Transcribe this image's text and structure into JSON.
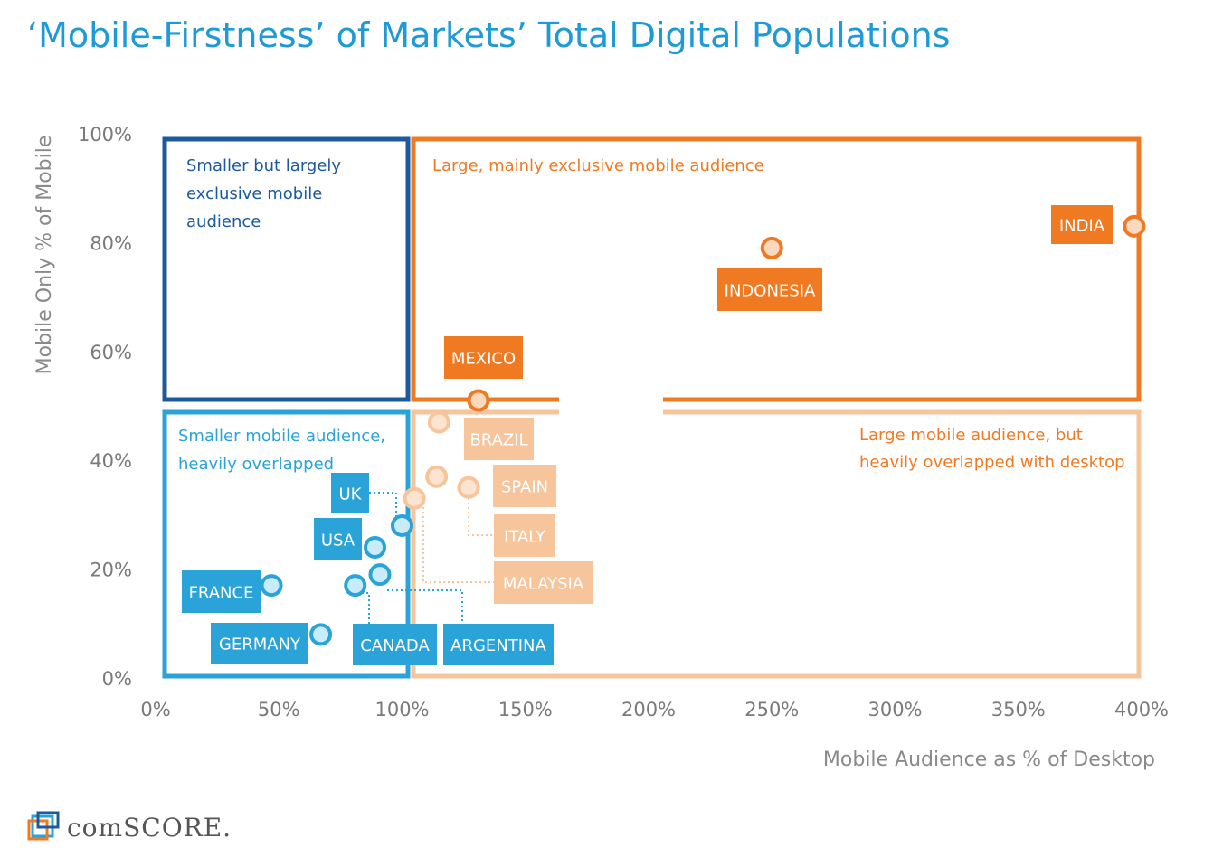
{
  "colors": {
    "title": "#1e9ad6",
    "dark_blue": "#1b5a9e",
    "light_blue": "#2aa3d8",
    "orange": "#ef7a22",
    "light_orange": "#f6c59c",
    "point_fill_blue": "#c8ecfa",
    "point_fill_orange": "#fbd9bf",
    "axis_text": "#7a7a7a"
  },
  "header": {
    "title": "‘Mobile-Firstness’ of Markets’ Total Digital Populations"
  },
  "brand": {
    "name": "comSCORE."
  },
  "chart_data": {
    "type": "scatter",
    "title": "‘Mobile-Firstness’ of Markets’ Total Digital Populations",
    "xlabel": "Mobile Audience as % of Desktop",
    "ylabel": "Mobile Only % of Mobile",
    "xlim": [
      0,
      400
    ],
    "ylim": [
      0,
      100
    ],
    "x_ticks": [
      0,
      50,
      100,
      150,
      200,
      250,
      300,
      350,
      400
    ],
    "x_tick_labels": [
      "0%",
      "50%",
      "100%",
      "150%",
      "200%",
      "250%",
      "300%",
      "350%",
      "400%"
    ],
    "y_ticks": [
      0,
      20,
      40,
      60,
      80,
      100
    ],
    "y_tick_labels": [
      "0%",
      "20%",
      "40%",
      "60%",
      "80%",
      "100%"
    ],
    "grid": false,
    "quadrants": [
      {
        "name": "top-left",
        "label_lines": [
          "Smaller but largely",
          "exclusive mobile",
          "audience"
        ],
        "color": "#1b5a9e"
      },
      {
        "name": "top-right",
        "label_lines": [
          "Large, mainly exclusive mobile audience"
        ],
        "color": "#ef7a22"
      },
      {
        "name": "bottom-left",
        "label_lines": [
          "Smaller mobile audience,",
          "heavily overlapped"
        ],
        "color": "#2aa3d8"
      },
      {
        "name": "bottom-right",
        "label_lines": [
          "Large mobile audience, but",
          "heavily overlapped with desktop"
        ],
        "color": "#f6c59c"
      }
    ],
    "points": [
      {
        "label": "INDIA",
        "x": 397,
        "y": 83,
        "group": "orange"
      },
      {
        "label": "INDONESIA",
        "x": 250,
        "y": 79,
        "group": "orange"
      },
      {
        "label": "MEXICO",
        "x": 131,
        "y": 51,
        "group": "orange"
      },
      {
        "label": "BRAZIL",
        "x": 115,
        "y": 47,
        "group": "light_orange"
      },
      {
        "label": "SPAIN",
        "x": 114,
        "y": 37,
        "group": "light_orange"
      },
      {
        "label": "ITALY",
        "x": 127,
        "y": 35,
        "group": "light_orange"
      },
      {
        "label": "MALAYSIA",
        "x": 105,
        "y": 33,
        "group": "light_orange"
      },
      {
        "label": "UK",
        "x": 100,
        "y": 28,
        "group": "blue"
      },
      {
        "label": "USA",
        "x": 89,
        "y": 24,
        "group": "blue"
      },
      {
        "label": "ARGENTINA",
        "x": 91,
        "y": 19,
        "group": "blue"
      },
      {
        "label": "CANADA",
        "x": 81,
        "y": 17,
        "group": "blue"
      },
      {
        "label": "FRANCE",
        "x": 47,
        "y": 17,
        "group": "blue"
      },
      {
        "label": "GERMANY",
        "x": 67,
        "y": 8,
        "group": "blue"
      }
    ]
  }
}
